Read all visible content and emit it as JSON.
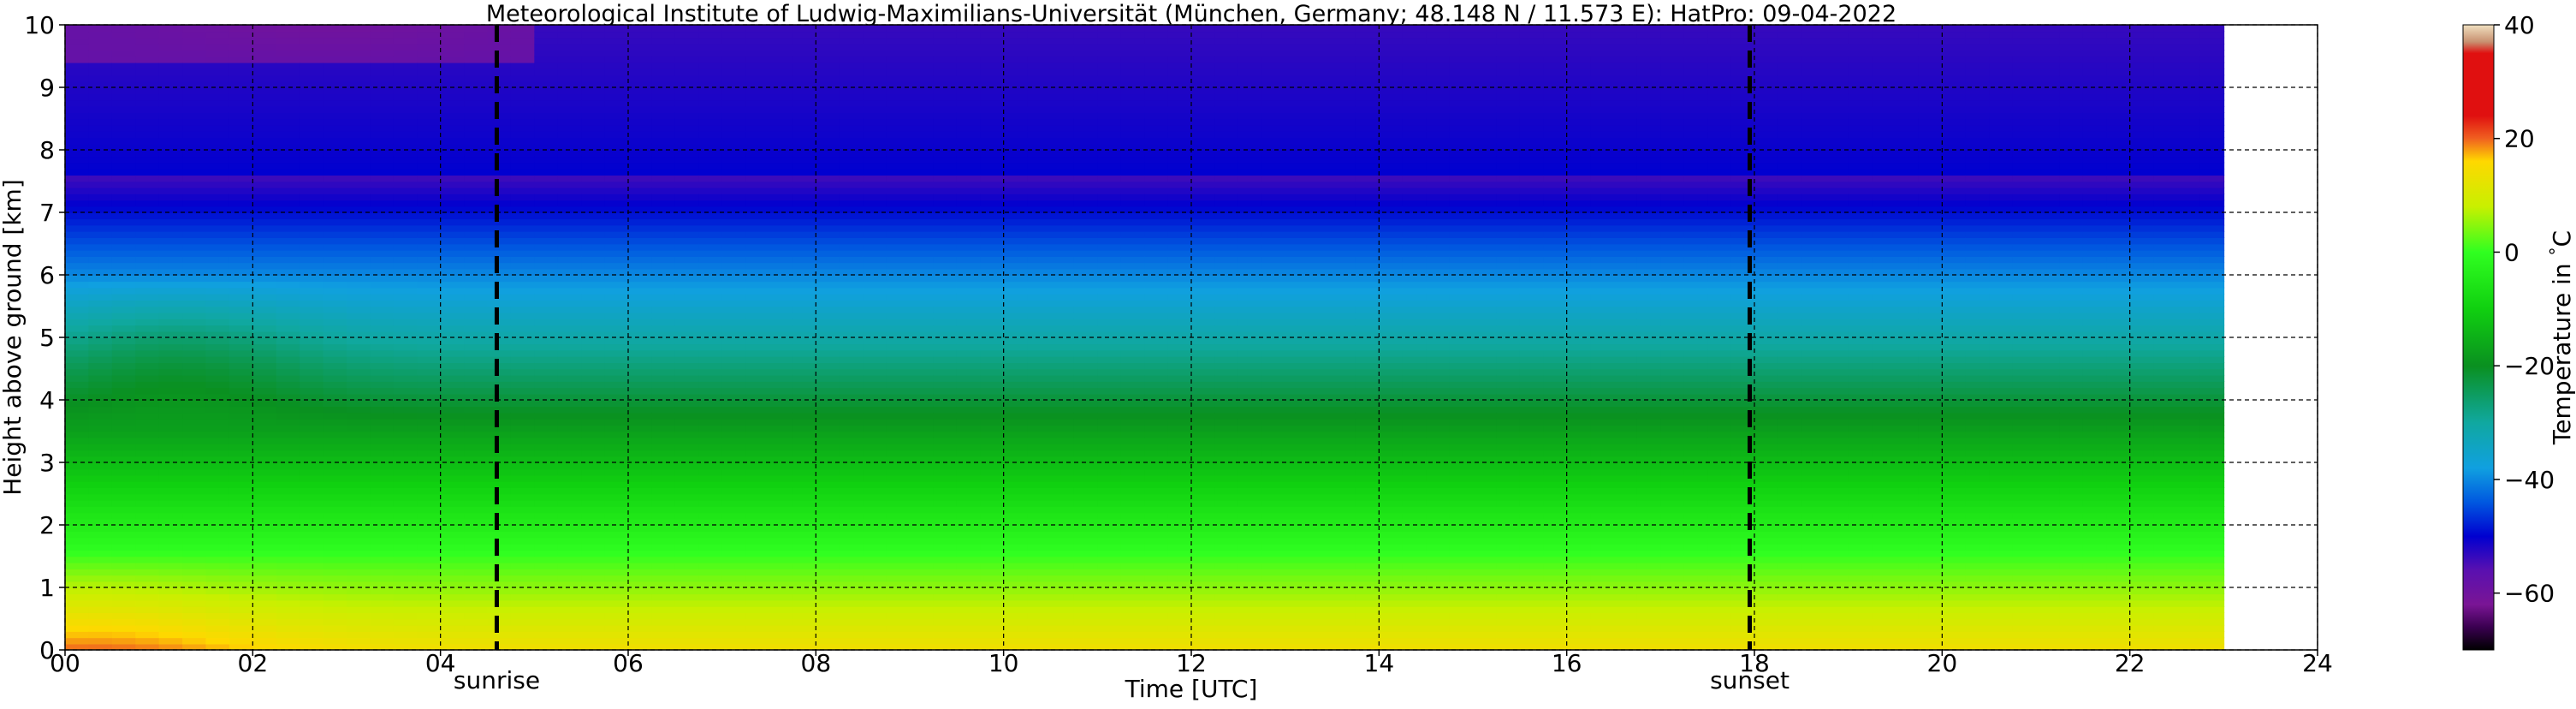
{
  "chart_data": {
    "type": "heatmap",
    "title": "Meteorological Institute of Ludwig-Maximilians-Universität (München, Germany; 48.148 N / 11.573 E):    HatPro: 09-04-2022",
    "xlabel": "Time [UTC]",
    "ylabel": "Height above ground [km]",
    "xlim": [
      0,
      24
    ],
    "ylim": [
      0,
      10
    ],
    "data_x_range": [
      0,
      23
    ],
    "xticks": [
      0,
      2,
      4,
      6,
      8,
      10,
      12,
      14,
      16,
      18,
      20,
      22,
      24
    ],
    "xtick_labels": [
      "00",
      "02",
      "04",
      "06",
      "08",
      "10",
      "12",
      "14",
      "16",
      "18",
      "20",
      "22",
      "24"
    ],
    "yticks": [
      0,
      1,
      2,
      3,
      4,
      5,
      6,
      7,
      8,
      9,
      10
    ],
    "ytick_labels": [
      "0",
      "1",
      "2",
      "3",
      "4",
      "5",
      "6",
      "7",
      "8",
      "9",
      "10"
    ],
    "grid": true,
    "markers": [
      {
        "label": "sunrise",
        "x": 4.6
      },
      {
        "label": "sunset",
        "x": 17.95
      }
    ],
    "colorbar": {
      "label": "Temperature in $^\\circ$C",
      "vmin": -70,
      "vmax": 40,
      "ticks": [
        40,
        20,
        0,
        -20,
        -40,
        -60
      ],
      "tick_labels": [
        "40",
        "20",
        "0",
        "−20",
        "−40",
        "−60"
      ],
      "stops": [
        {
          "t": -70,
          "color": "#000000"
        },
        {
          "t": -66,
          "color": "#3a0050"
        },
        {
          "t": -62,
          "color": "#7a1595"
        },
        {
          "t": -56,
          "color": "#5a10b0"
        },
        {
          "t": -50,
          "color": "#0000d0"
        },
        {
          "t": -44,
          "color": "#0058e0"
        },
        {
          "t": -38,
          "color": "#10a0e0"
        },
        {
          "t": -30,
          "color": "#10a8a0"
        },
        {
          "t": -20,
          "color": "#0a9020"
        },
        {
          "t": -10,
          "color": "#10d010"
        },
        {
          "t": 0,
          "color": "#30ff20"
        },
        {
          "t": 8,
          "color": "#c8f000"
        },
        {
          "t": 16,
          "color": "#ffd800"
        },
        {
          "t": 20,
          "color": "#f06020"
        },
        {
          "t": 24,
          "color": "#e01010"
        },
        {
          "t": 35,
          "color": "#e01010"
        },
        {
          "t": 37,
          "color": "#c89070"
        },
        {
          "t": 40,
          "color": "#f0e0c0"
        }
      ]
    }
  }
}
